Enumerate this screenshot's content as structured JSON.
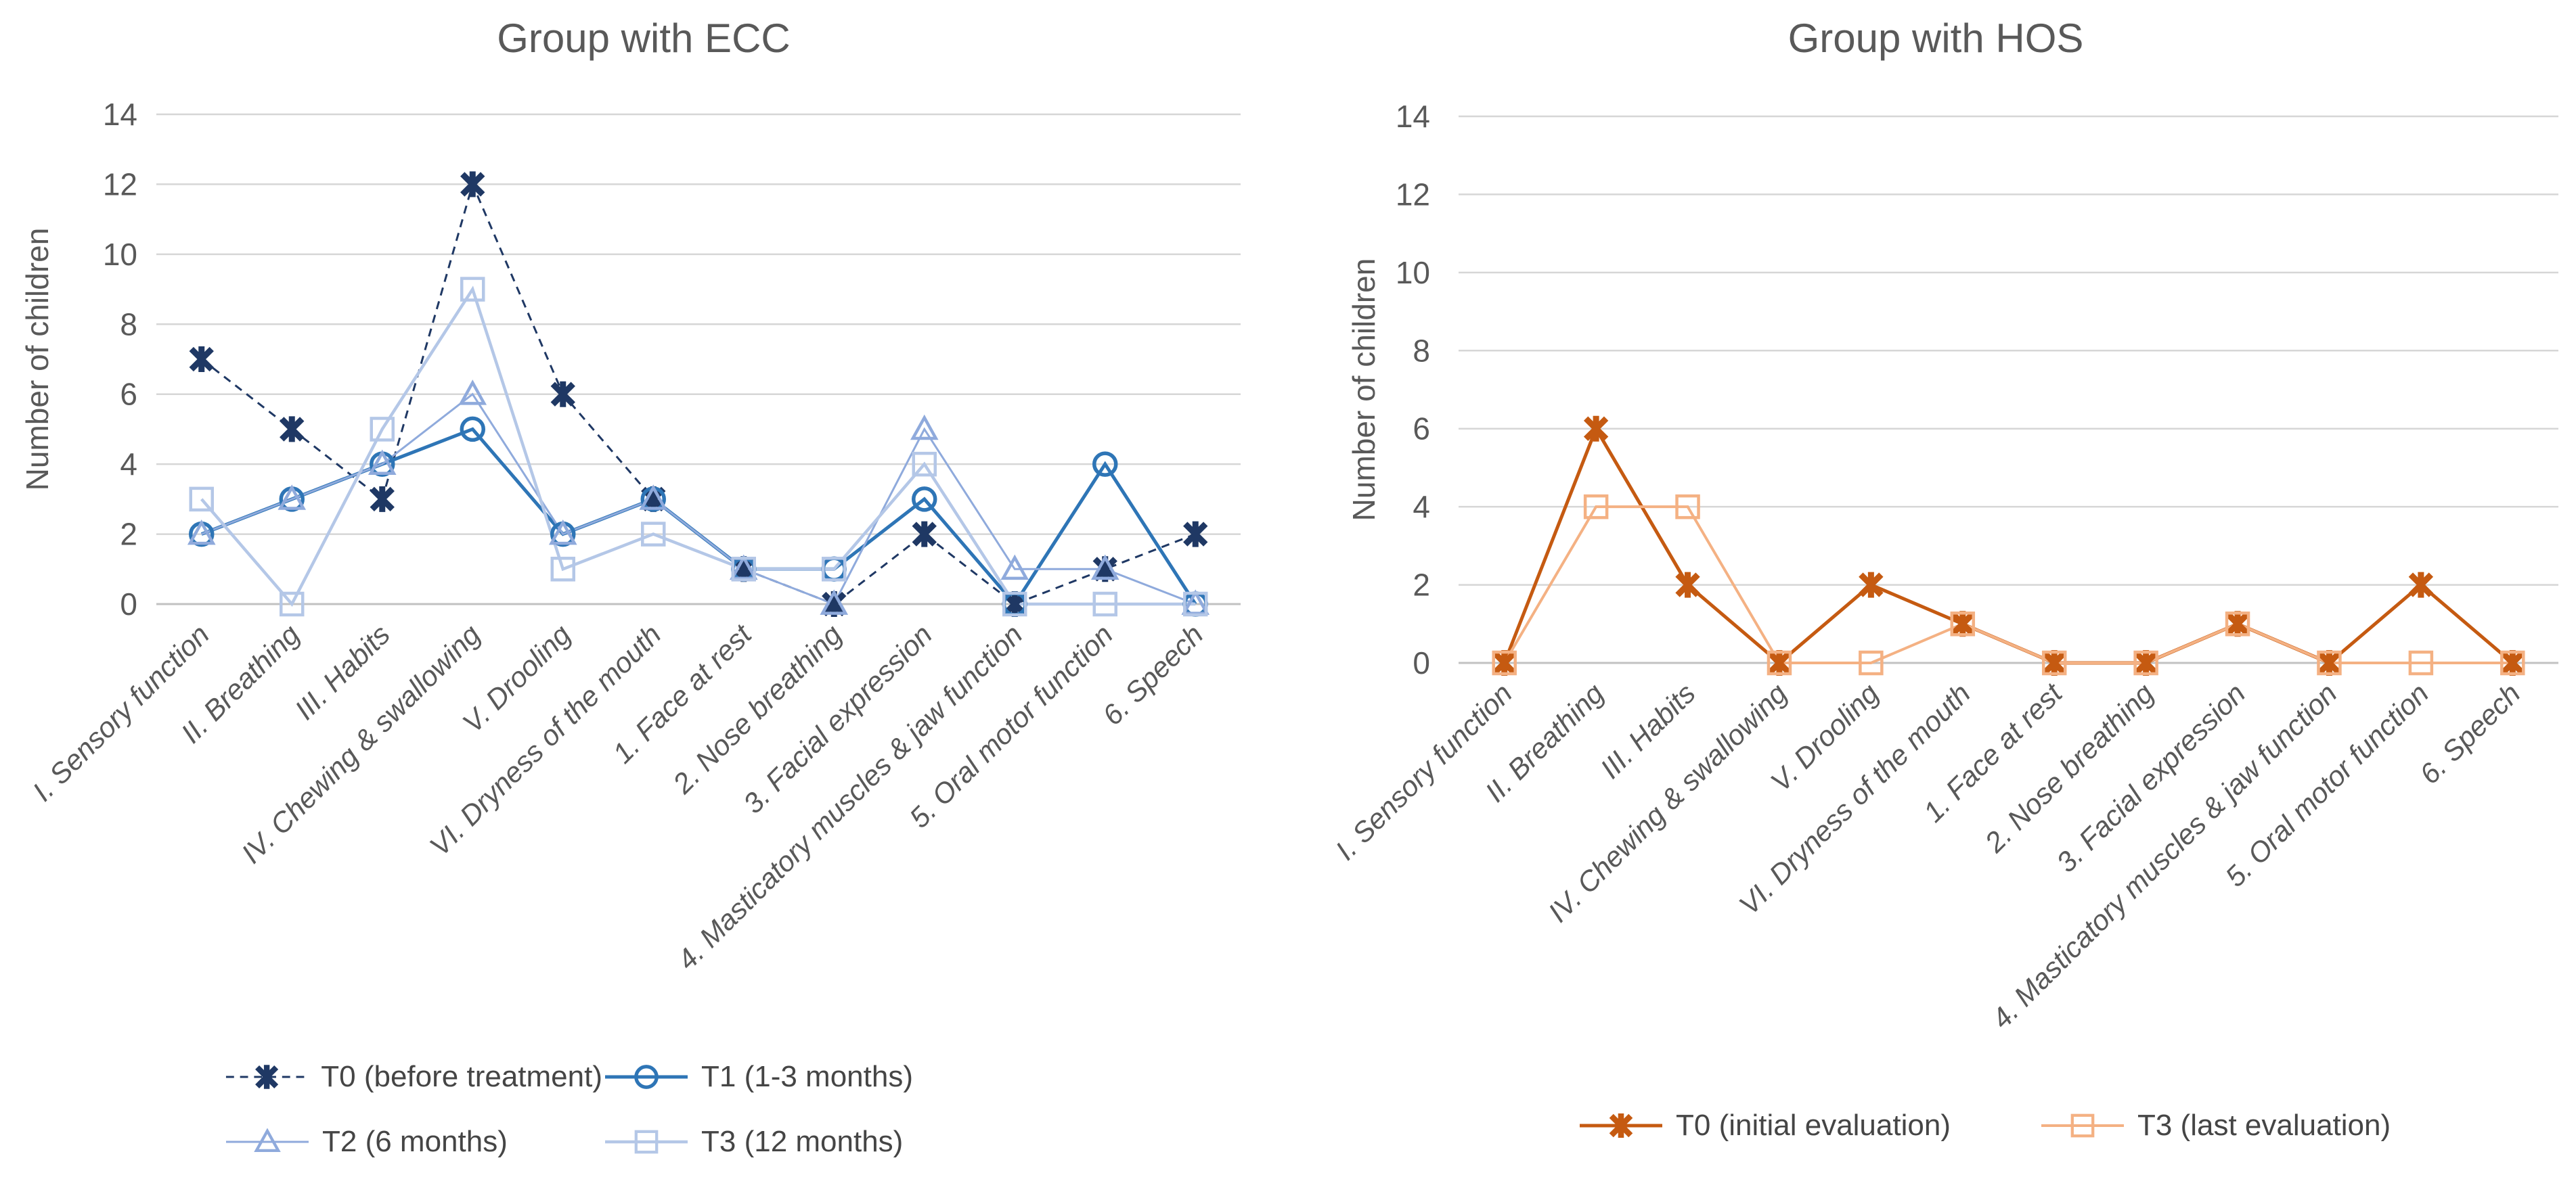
{
  "chart_data": [
    {
      "type": "line",
      "title": "Group with ECC",
      "ylabel": "Number of children",
      "xlabel": "",
      "ylim": [
        0,
        14
      ],
      "yticks": [
        0,
        2,
        4,
        6,
        8,
        10,
        12,
        14
      ],
      "grid": true,
      "legend_position": "bottom",
      "categories": [
        "I. Sensory function",
        "II. Breathing",
        "III. Habits",
        "IV. Chewing & swallowing",
        "V. Drooling",
        "VI. Dryness of the mouth",
        "1. Face at rest",
        "2. Nose breathing",
        "3. Facial expression",
        "4. Masticatory muscles & jaw function",
        "5. Oral motor function",
        "6. Speech"
      ],
      "series": [
        {
          "name": "T0 (before treatment)",
          "marker": "star",
          "dash": true,
          "color": "#1f3864",
          "values": [
            7,
            5,
            3,
            12,
            6,
            3,
            1,
            0,
            2,
            0,
            1,
            2
          ]
        },
        {
          "name": "T1 (1-3 months)",
          "marker": "circle",
          "dash": false,
          "color": "#2e75b6",
          "values": [
            2,
            3,
            4,
            5,
            2,
            3,
            1,
            1,
            3,
            0,
            4,
            0
          ]
        },
        {
          "name": "T2 (6 months)",
          "marker": "triangle",
          "dash": false,
          "color": "#8faadc",
          "values": [
            2,
            3,
            4,
            6,
            2,
            3,
            1,
            0,
            5,
            1,
            1,
            0
          ]
        },
        {
          "name": "T3 (12 months)",
          "marker": "square",
          "dash": false,
          "color": "#b4c7e7",
          "values": [
            3,
            0,
            5,
            9,
            1,
            2,
            1,
            1,
            4,
            0,
            0,
            0
          ]
        }
      ]
    },
    {
      "type": "line",
      "title": "Group with HOS",
      "ylabel": "Number of children",
      "xlabel": "",
      "ylim": [
        0,
        14
      ],
      "yticks": [
        0,
        2,
        4,
        6,
        8,
        10,
        12,
        14
      ],
      "grid": true,
      "legend_position": "bottom",
      "categories": [
        "I. Sensory function",
        "II. Breathing",
        "III. Habits",
        "IV. Chewing & swallowing",
        "V. Drooling",
        "VI. Dryness of the mouth",
        "1. Face at rest",
        "2. Nose breathing",
        "3. Facial expression",
        "4. Masticatory muscles & jaw function",
        "5. Oral motor function",
        "6. Speech"
      ],
      "series": [
        {
          "name": "T0 (initial evaluation)",
          "marker": "star",
          "dash": false,
          "color": "#c55a11",
          "values": [
            0,
            6,
            2,
            0,
            2,
            1,
            0,
            0,
            1,
            0,
            2,
            0
          ]
        },
        {
          "name": "T3 (last evaluation)",
          "marker": "square",
          "dash": false,
          "color": "#f4b183",
          "values": [
            0,
            4,
            4,
            0,
            0,
            1,
            0,
            0,
            1,
            0,
            0,
            0
          ]
        }
      ]
    }
  ],
  "style": {
    "grid_color": "#d6d6d6",
    "zero_line_color": "#c2c2c2",
    "axis_text_color": "#595959",
    "legend_text_color": "#454545"
  }
}
